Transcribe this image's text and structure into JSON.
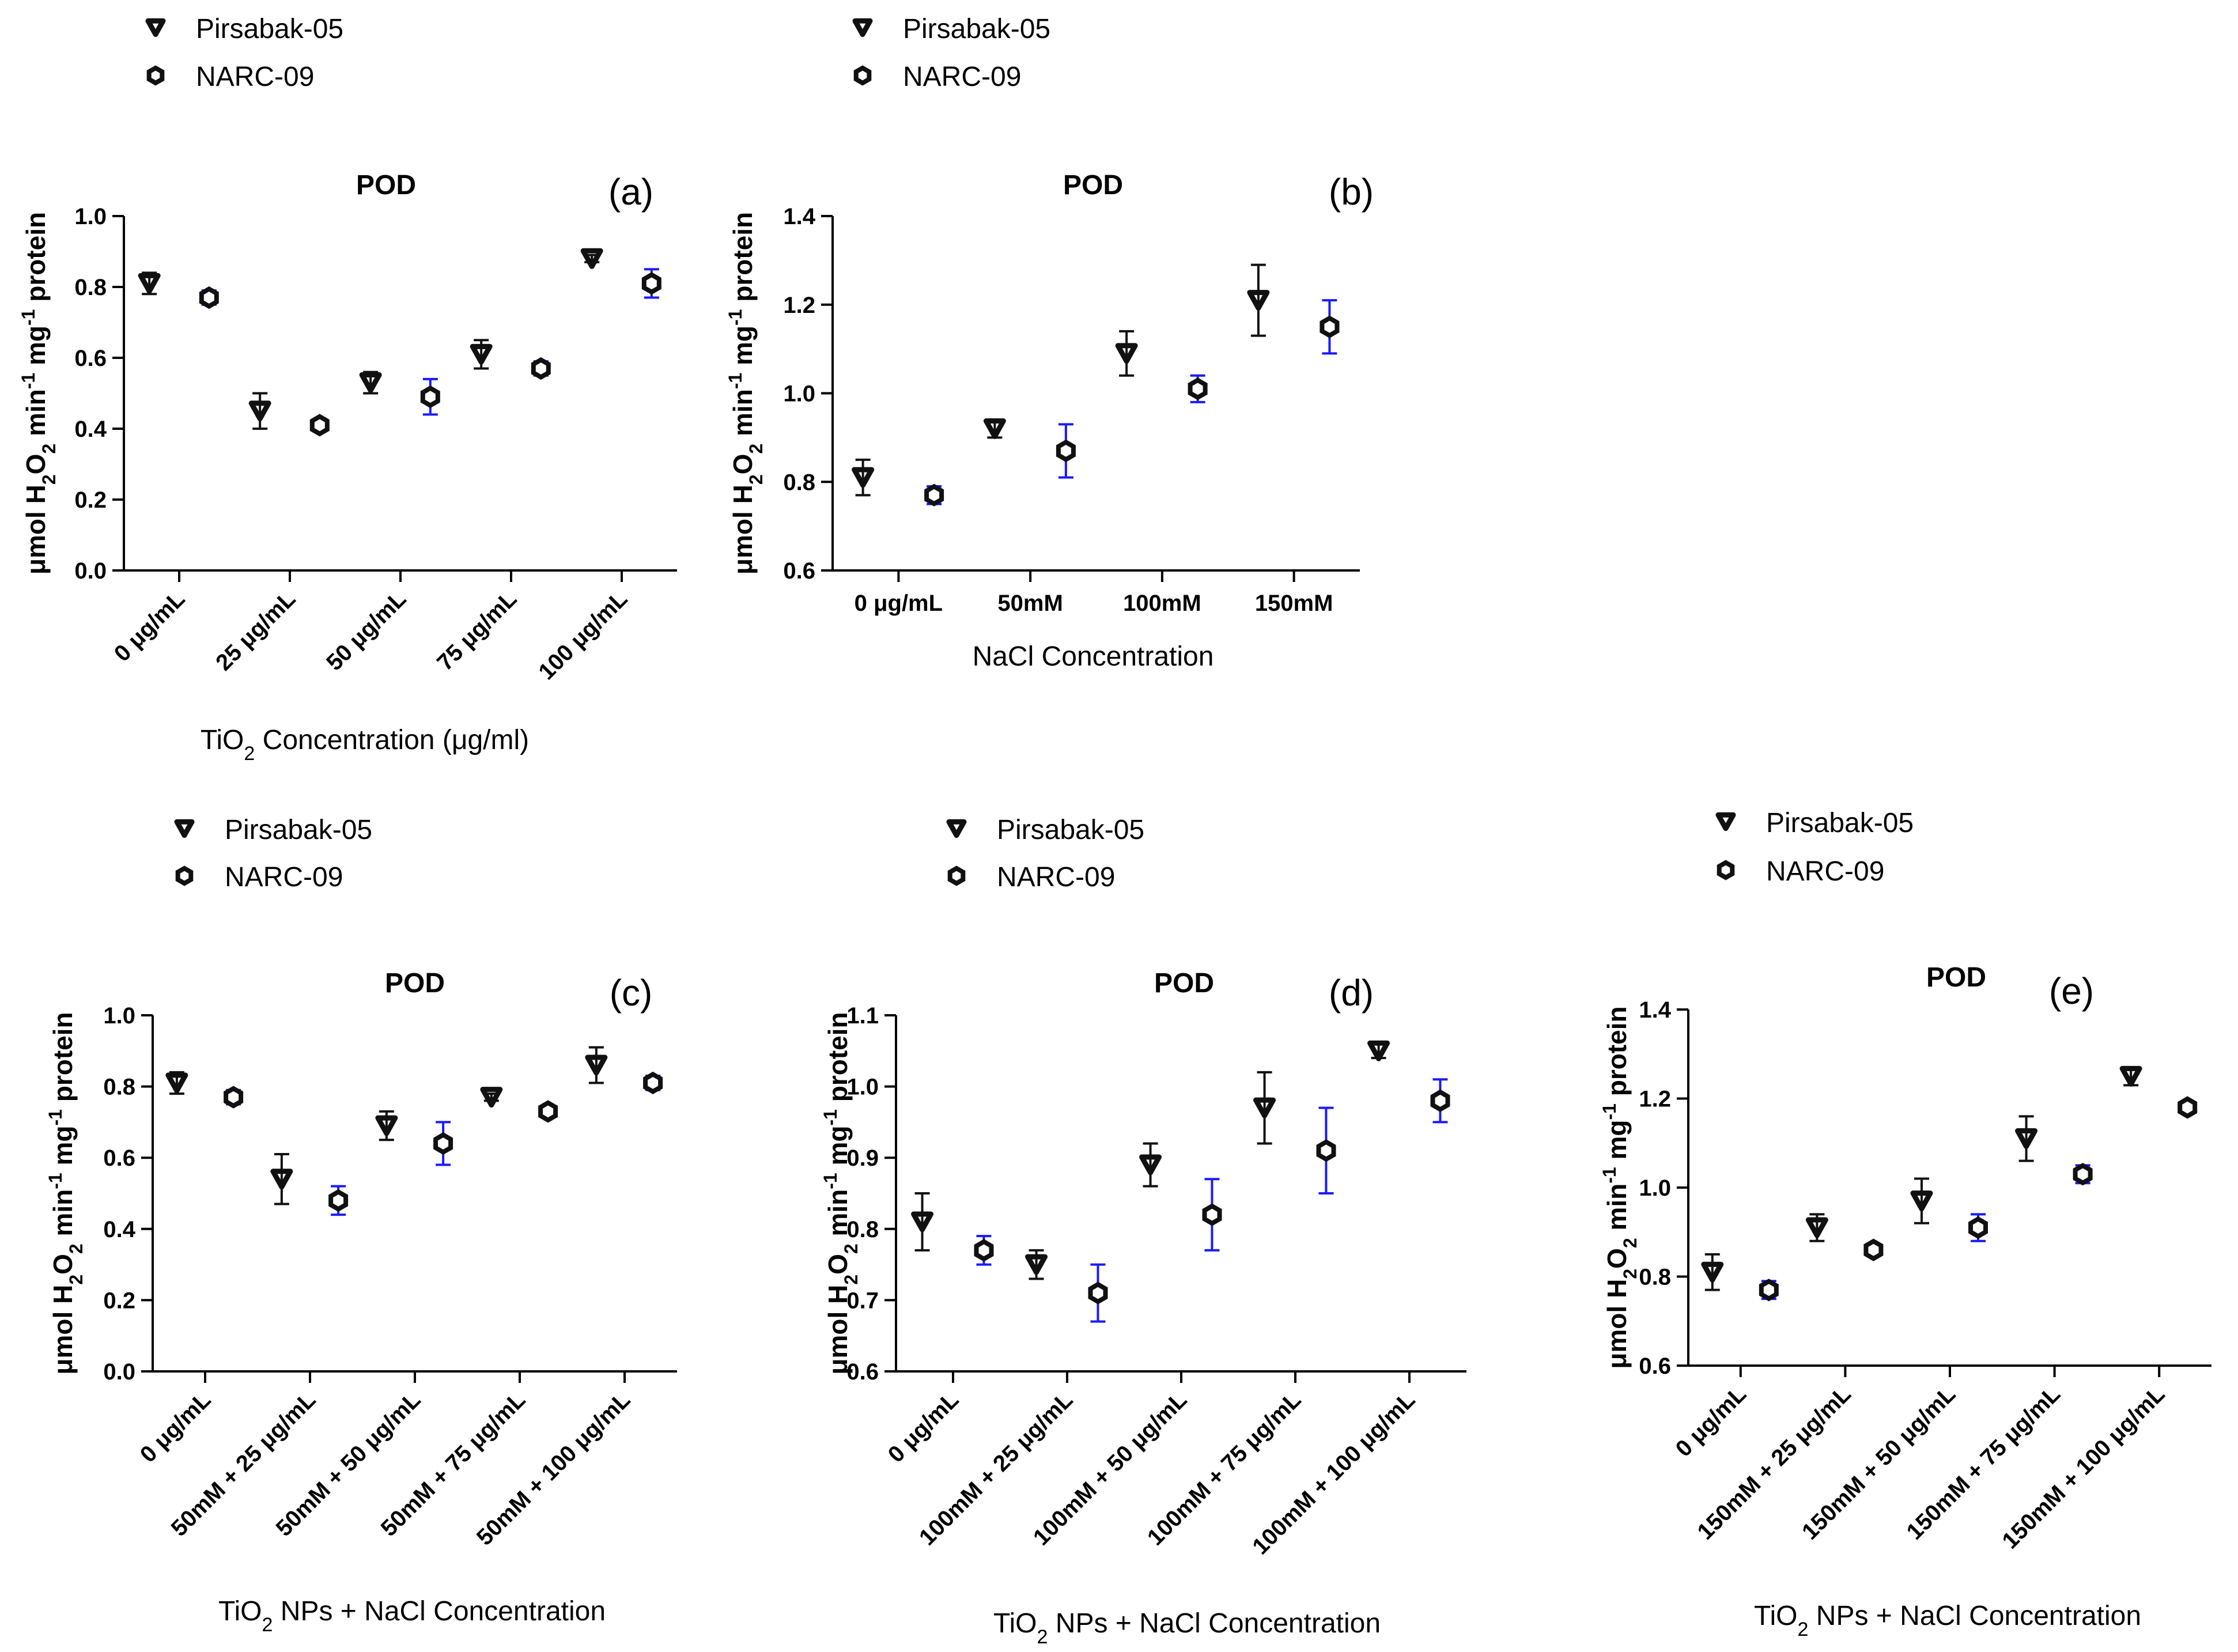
{
  "figure_name": "POD",
  "colors": {
    "pirsabak": "#111111",
    "narc": "#1a1aff",
    "axis": "#000000"
  },
  "y_label_parts": [
    "μmol H",
    "2",
    "O",
    "2",
    " min",
    "-1",
    " mg",
    "-1",
    " protein"
  ],
  "x_label_prefix": "TiO",
  "x_label_sub": "2",
  "chart_data": [
    {
      "type": "scatter",
      "panel": "(a)",
      "title": "POD",
      "legend": [
        "Pirsabak-05",
        "NARC-09"
      ],
      "categories": [
        "0 μg/mL",
        "25 μg/mL",
        "50 μg/mL",
        "75 μg/mL",
        "100 μg/mL"
      ],
      "xlabel_rest": "  Concentration (μg/ml)",
      "ylim": [
        0.0,
        1.0
      ],
      "yticks": [
        "0.0",
        "0.2",
        "0.4",
        "0.6",
        "0.8",
        "1.0"
      ],
      "series": [
        {
          "name": "Pirsabak-05",
          "values": [
            0.81,
            0.45,
            0.53,
            0.61,
            0.88
          ],
          "errors": [
            0.03,
            0.05,
            0.03,
            0.04,
            0.01
          ]
        },
        {
          "name": "NARC-09",
          "values": [
            0.77,
            0.41,
            0.49,
            0.57,
            0.81
          ],
          "errors": [
            0.02,
            0.01,
            0.05,
            0.02,
            0.04
          ]
        }
      ]
    },
    {
      "type": "scatter",
      "panel": "(b)",
      "title": "POD",
      "legend": [
        "Pirsabak-05",
        "NARC-09"
      ],
      "categories": [
        "0 μg/mL",
        "50mM",
        "100mM",
        "150mM"
      ],
      "xlabel": "NaCl  Concentration",
      "ylim": [
        0.6,
        1.4
      ],
      "yticks": [
        "0.6",
        "0.8",
        "1.0",
        "1.2",
        "1.4"
      ],
      "series": [
        {
          "name": "Pirsabak-05",
          "values": [
            0.81,
            0.92,
            1.09,
            1.21
          ],
          "errors": [
            0.04,
            0.02,
            0.05,
            0.08
          ]
        },
        {
          "name": "NARC-09",
          "values": [
            0.77,
            0.87,
            1.01,
            1.15
          ],
          "errors": [
            0.02,
            0.06,
            0.03,
            0.06
          ]
        }
      ]
    },
    {
      "type": "scatter",
      "panel": "(c)",
      "title": "POD",
      "legend": [
        "Pirsabak-05",
        "NARC-09"
      ],
      "categories": [
        "0 μg/mL",
        "50mM + 25 μg/mL",
        "50mM + 50 μg/mL",
        "50mM + 75 μg/mL",
        "50mM + 100 μg/mL"
      ],
      "xlabel_rest": "  NPs + NaCl  Concentration",
      "ylim": [
        0.0,
        1.0
      ],
      "yticks": [
        "0.0",
        "0.2",
        "0.4",
        "0.6",
        "0.8",
        "1.0"
      ],
      "series": [
        {
          "name": "Pirsabak-05",
          "values": [
            0.81,
            0.54,
            0.69,
            0.77,
            0.86
          ],
          "errors": [
            0.03,
            0.07,
            0.04,
            0.01,
            0.05
          ]
        },
        {
          "name": "NARC-09",
          "values": [
            0.77,
            0.48,
            0.64,
            0.73,
            0.81
          ],
          "errors": [
            0.02,
            0.04,
            0.06,
            0.01,
            0.02
          ]
        }
      ]
    },
    {
      "type": "scatter",
      "panel": "(d)",
      "title": "POD",
      "legend": [
        "Pirsabak-05",
        "NARC-09"
      ],
      "categories": [
        "0 μg/mL",
        "100mM + 25 μg/mL",
        "100mM + 50 μg/mL",
        "100mM + 75 μg/mL",
        "100mM + 100 μg/mL"
      ],
      "xlabel_rest": "  NPs + NaCl  Concentration",
      "ylim": [
        0.6,
        1.1
      ],
      "yticks": [
        "0.6",
        "0.7",
        "0.8",
        "0.9",
        "1.0",
        "1.1"
      ],
      "series": [
        {
          "name": "Pirsabak-05",
          "values": [
            0.81,
            0.75,
            0.89,
            0.97,
            1.05
          ],
          "errors": [
            0.04,
            0.02,
            0.03,
            0.05,
            0.01
          ]
        },
        {
          "name": "NARC-09",
          "values": [
            0.77,
            0.71,
            0.82,
            0.91,
            0.98
          ],
          "errors": [
            0.02,
            0.04,
            0.05,
            0.06,
            0.03
          ]
        }
      ]
    },
    {
      "type": "scatter",
      "panel": "(e)",
      "title": "POD",
      "legend": [
        "Pirsabak-05",
        "NARC-09"
      ],
      "categories": [
        "0 μg/mL",
        "150mM + 25 μg/mL",
        "150mM + 50 μg/mL",
        "150mM + 75 μg/mL",
        "150mM + 100 μg/mL"
      ],
      "xlabel_rest": "  NPs + NaCl  Concentration",
      "ylim": [
        0.6,
        1.4
      ],
      "yticks": [
        "0.6",
        "0.8",
        "1.0",
        "1.2",
        "1.4"
      ],
      "series": [
        {
          "name": "Pirsabak-05",
          "values": [
            0.81,
            0.91,
            0.97,
            1.11,
            1.25
          ],
          "errors": [
            0.04,
            0.03,
            0.05,
            0.05,
            0.02
          ]
        },
        {
          "name": "NARC-09",
          "values": [
            0.77,
            0.86,
            0.91,
            1.03,
            1.18
          ],
          "errors": [
            0.02,
            0.01,
            0.03,
            0.02,
            0.01
          ]
        }
      ]
    }
  ]
}
